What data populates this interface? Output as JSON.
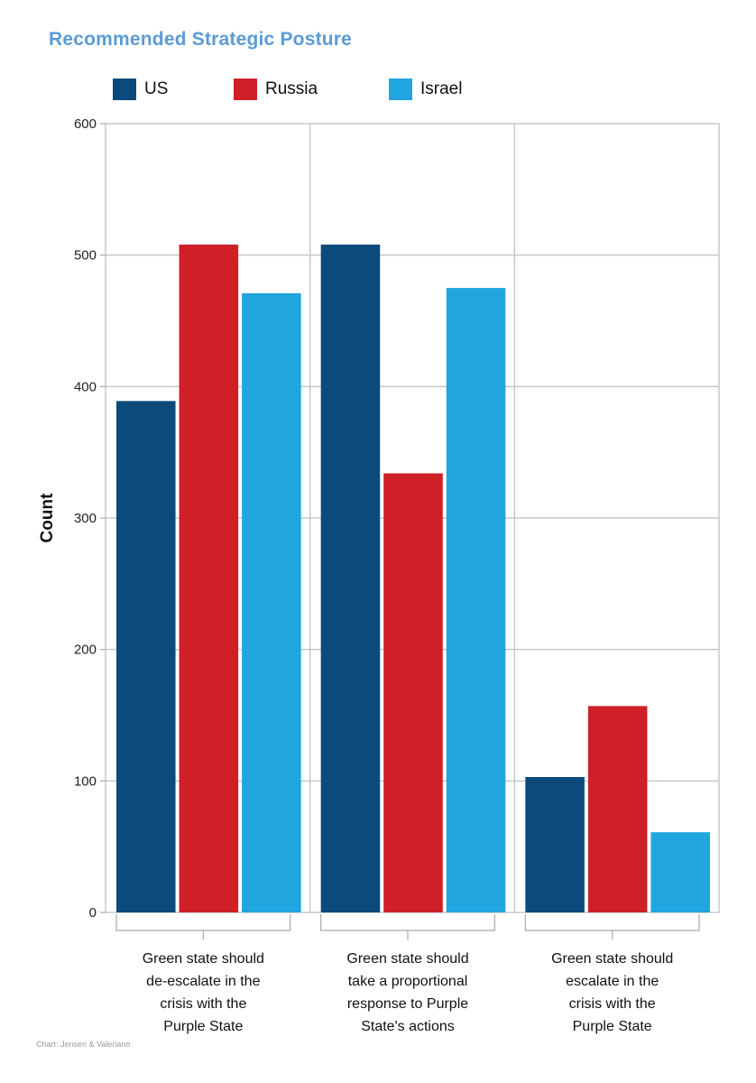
{
  "chart_data": {
    "type": "bar",
    "title": "Recommended Strategic Posture",
    "xlabel": "",
    "ylabel": "Count",
    "ylim": [
      0,
      600
    ],
    "yticks": [
      0,
      100,
      200,
      300,
      400,
      500,
      600
    ],
    "categories": [
      [
        "Green state should",
        "de-escalate in the",
        "crisis with the",
        "Purple State"
      ],
      [
        "Green state should",
        "take a proportional",
        "response to Purple",
        "State's actions"
      ],
      [
        "Green state should",
        "escalate in the",
        "crisis with the",
        "Purple State"
      ]
    ],
    "series": [
      {
        "name": "US",
        "color": "#0d4a7c",
        "values": [
          389,
          508,
          103
        ]
      },
      {
        "name": "Russia",
        "color": "#cf2028",
        "values": [
          508,
          334,
          157
        ]
      },
      {
        "name": "Israel",
        "color": "#21a5df",
        "values": [
          471,
          475,
          61
        ]
      }
    ],
    "grid": true,
    "legend_position": "top-left",
    "credit": "Chart: Jensen & Valeriano"
  }
}
